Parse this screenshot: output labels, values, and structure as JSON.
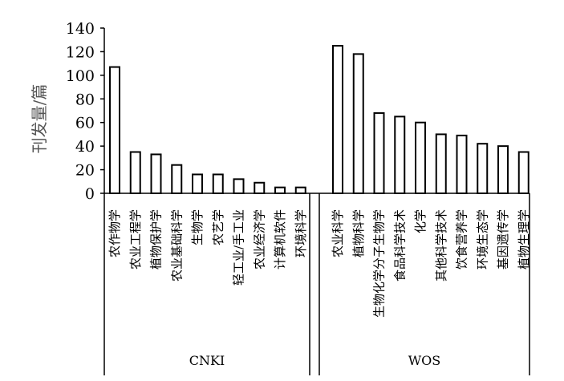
{
  "chart_data": {
    "type": "bar",
    "title": "",
    "xlabel": "",
    "ylabel": "刊发量/篇",
    "ylim": [
      0,
      140
    ],
    "yticks": [
      0,
      20,
      40,
      60,
      80,
      100,
      120,
      140
    ],
    "grid": false,
    "colors": {
      "bar_fill": "#ffffff",
      "bar_stroke": "#000000",
      "axis": "#000000"
    },
    "groups": [
      {
        "name": "CNKI",
        "categories": [
          "农作物学",
          "农业工程学",
          "植物保护学",
          "农业基础科学",
          "生物学",
          "农艺学",
          "轻工业/手工业",
          "农业经济学",
          "计算机软件",
          "环境科学"
        ],
        "values": [
          107,
          35,
          33,
          24,
          16,
          16,
          12,
          9,
          5,
          5
        ]
      },
      {
        "name": "WOS",
        "categories": [
          "农业科学",
          "植物科学",
          "生物化学分子生物学",
          "食品科学技术",
          "化学",
          "其他科学技术",
          "饮食营养学",
          "环境生态学",
          "基因遗传学",
          "植物生理学"
        ],
        "values": [
          125,
          118,
          68,
          65,
          60,
          50,
          49,
          42,
          40,
          35
        ]
      }
    ]
  }
}
